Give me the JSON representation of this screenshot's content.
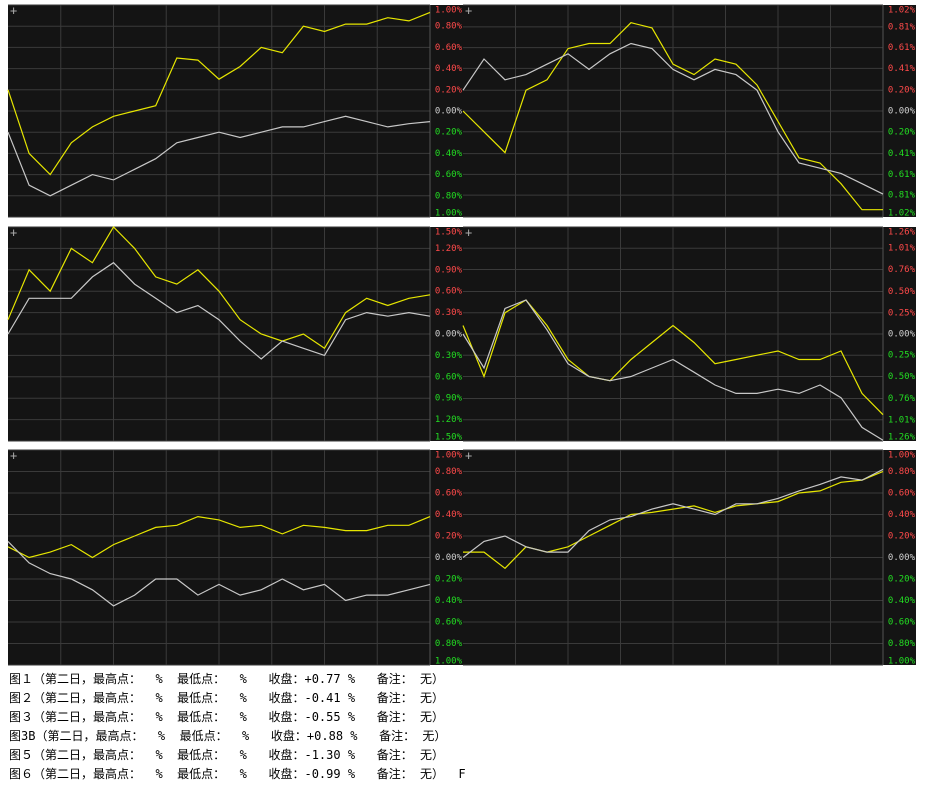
{
  "chart_data": [
    {
      "type": "line",
      "ylim": [
        -1,
        1
      ],
      "grid": true,
      "yticks": [
        {
          "value": 1,
          "label": "1.00%"
        },
        {
          "value": 0.8,
          "label": "0.80%"
        },
        {
          "value": 0.6,
          "label": "0.60%"
        },
        {
          "value": 0.4,
          "label": "0.40%"
        },
        {
          "value": 0.2,
          "label": "0.20%"
        },
        {
          "value": 0,
          "label": "0.00%"
        },
        {
          "value": -0.2,
          "label": "0.20%"
        },
        {
          "value": -0.4,
          "label": "0.40%"
        },
        {
          "value": -0.6,
          "label": "0.60%"
        },
        {
          "value": -0.8,
          "label": "0.80%"
        },
        {
          "value": -1,
          "label": "1.00%"
        }
      ],
      "series": [
        {
          "color": "#e6e600",
          "values": [
            0.2,
            -0.4,
            -0.6,
            -0.3,
            -0.15,
            -0.05,
            0.0,
            0.05,
            0.5,
            0.48,
            0.3,
            0.42,
            0.6,
            0.55,
            0.8,
            0.75,
            0.82,
            0.82,
            0.88,
            0.85,
            0.93
          ]
        },
        {
          "color": "#c8c8c8",
          "values": [
            -0.2,
            -0.7,
            -0.8,
            -0.7,
            -0.6,
            -0.65,
            -0.55,
            -0.45,
            -0.3,
            -0.25,
            -0.2,
            -0.25,
            -0.2,
            -0.15,
            -0.15,
            -0.1,
            -0.05,
            -0.1,
            -0.15,
            -0.12,
            -0.1
          ]
        }
      ]
    },
    {
      "type": "line",
      "ylim": [
        -1.02,
        1.02
      ],
      "grid": true,
      "yticks": [
        {
          "value": 1.02,
          "label": "1.02%"
        },
        {
          "value": 0.81,
          "label": "0.81%"
        },
        {
          "value": 0.61,
          "label": "0.61%"
        },
        {
          "value": 0.41,
          "label": "0.41%"
        },
        {
          "value": 0.2,
          "label": "0.20%"
        },
        {
          "value": 0,
          "label": "0.00%"
        },
        {
          "value": -0.2,
          "label": "0.20%"
        },
        {
          "value": -0.41,
          "label": "0.41%"
        },
        {
          "value": -0.61,
          "label": "0.61%"
        },
        {
          "value": -0.81,
          "label": "0.81%"
        },
        {
          "value": -1.02,
          "label": "1.02%"
        }
      ],
      "series": [
        {
          "color": "#e6e600",
          "values": [
            0.0,
            -0.2,
            -0.4,
            0.2,
            0.3,
            0.6,
            0.65,
            0.65,
            0.85,
            0.8,
            0.45,
            0.35,
            0.5,
            0.45,
            0.25,
            -0.1,
            -0.45,
            -0.5,
            -0.7,
            -0.95,
            -0.95
          ]
        },
        {
          "color": "#c8c8c8",
          "values": [
            0.2,
            0.5,
            0.3,
            0.35,
            0.45,
            0.55,
            0.4,
            0.55,
            0.65,
            0.6,
            0.4,
            0.3,
            0.4,
            0.35,
            0.2,
            -0.2,
            -0.5,
            -0.55,
            -0.6,
            -0.7,
            -0.8
          ]
        }
      ]
    },
    {
      "type": "line",
      "ylim": [
        -1.5,
        1.5
      ],
      "grid": true,
      "yticks": [
        {
          "value": 1.5,
          "label": "1.50%"
        },
        {
          "value": 1.2,
          "label": "1.20%"
        },
        {
          "value": 0.9,
          "label": "0.90%"
        },
        {
          "value": 0.6,
          "label": "0.60%"
        },
        {
          "value": 0.3,
          "label": "0.30%"
        },
        {
          "value": 0,
          "label": "0.00%"
        },
        {
          "value": -0.3,
          "label": "0.30%"
        },
        {
          "value": -0.6,
          "label": "0.60%"
        },
        {
          "value": -0.9,
          "label": "0.90%"
        },
        {
          "value": -1.2,
          "label": "1.20%"
        },
        {
          "value": -1.5,
          "label": "1.50%"
        }
      ],
      "series": [
        {
          "color": "#e6e600",
          "values": [
            0.2,
            0.9,
            0.6,
            1.2,
            1.0,
            1.5,
            1.2,
            0.8,
            0.7,
            0.9,
            0.6,
            0.2,
            0.0,
            -0.1,
            0.0,
            -0.2,
            0.3,
            0.5,
            0.4,
            0.5,
            0.55
          ]
        },
        {
          "color": "#c8c8c8",
          "values": [
            0.0,
            0.5,
            0.5,
            0.5,
            0.8,
            1.0,
            0.7,
            0.5,
            0.3,
            0.4,
            0.2,
            -0.1,
            -0.35,
            -0.1,
            -0.2,
            -0.3,
            0.2,
            0.3,
            0.25,
            0.3,
            0.25
          ]
        }
      ]
    },
    {
      "type": "line",
      "ylim": [
        -1.26,
        1.26
      ],
      "grid": true,
      "yticks": [
        {
          "value": 1.26,
          "label": "1.26%"
        },
        {
          "value": 1.01,
          "label": "1.01%"
        },
        {
          "value": 0.76,
          "label": "0.76%"
        },
        {
          "value": 0.5,
          "label": "0.50%"
        },
        {
          "value": 0.25,
          "label": "0.25%"
        },
        {
          "value": 0,
          "label": "0.00%"
        },
        {
          "value": -0.25,
          "label": "0.25%"
        },
        {
          "value": -0.5,
          "label": "0.50%"
        },
        {
          "value": -0.76,
          "label": "0.76%"
        },
        {
          "value": -1.01,
          "label": "1.01%"
        },
        {
          "value": -1.26,
          "label": "1.26%"
        }
      ],
      "series": [
        {
          "color": "#e6e600",
          "values": [
            0.1,
            -0.5,
            0.25,
            0.4,
            0.1,
            -0.3,
            -0.5,
            -0.55,
            -0.3,
            -0.1,
            0.1,
            -0.1,
            -0.35,
            -0.3,
            -0.25,
            -0.2,
            -0.3,
            -0.3,
            -0.2,
            -0.7,
            -0.95
          ]
        },
        {
          "color": "#c8c8c8",
          "values": [
            0.0,
            -0.4,
            0.3,
            0.4,
            0.05,
            -0.35,
            -0.5,
            -0.55,
            -0.5,
            -0.4,
            -0.3,
            -0.45,
            -0.6,
            -0.7,
            -0.7,
            -0.65,
            -0.7,
            -0.6,
            -0.75,
            -1.1,
            -1.25
          ]
        }
      ]
    },
    {
      "type": "line",
      "ylim": [
        -1,
        1
      ],
      "grid": true,
      "yticks": [
        {
          "value": 1,
          "label": "1.00%"
        },
        {
          "value": 0.8,
          "label": "0.80%"
        },
        {
          "value": 0.6,
          "label": "0.60%"
        },
        {
          "value": 0.4,
          "label": "0.40%"
        },
        {
          "value": 0.2,
          "label": "0.20%"
        },
        {
          "value": 0,
          "label": "0.00%"
        },
        {
          "value": -0.2,
          "label": "0.20%"
        },
        {
          "value": -0.4,
          "label": "0.40%"
        },
        {
          "value": -0.6,
          "label": "0.60%"
        },
        {
          "value": -0.8,
          "label": "0.80%"
        },
        {
          "value": -1,
          "label": "1.00%"
        }
      ],
      "series": [
        {
          "color": "#e6e600",
          "values": [
            0.1,
            0.0,
            0.05,
            0.12,
            0.0,
            0.12,
            0.2,
            0.28,
            0.3,
            0.38,
            0.35,
            0.28,
            0.3,
            0.22,
            0.3,
            0.28,
            0.25,
            0.25,
            0.3,
            0.3,
            0.38
          ]
        },
        {
          "color": "#c8c8c8",
          "values": [
            0.15,
            -0.05,
            -0.15,
            -0.2,
            -0.3,
            -0.45,
            -0.35,
            -0.2,
            -0.2,
            -0.35,
            -0.25,
            -0.35,
            -0.3,
            -0.2,
            -0.3,
            -0.25,
            -0.4,
            -0.35,
            -0.35,
            -0.3,
            -0.25
          ]
        }
      ]
    },
    {
      "type": "line",
      "ylim": [
        -1,
        1
      ],
      "grid": true,
      "yticks": [
        {
          "value": 1,
          "label": "1.00%"
        },
        {
          "value": 0.8,
          "label": "0.80%"
        },
        {
          "value": 0.6,
          "label": "0.60%"
        },
        {
          "value": 0.4,
          "label": "0.40%"
        },
        {
          "value": 0.2,
          "label": "0.20%"
        },
        {
          "value": 0,
          "label": "0.00%"
        },
        {
          "value": -0.2,
          "label": "0.20%"
        },
        {
          "value": -0.4,
          "label": "0.40%"
        },
        {
          "value": -0.6,
          "label": "0.60%"
        },
        {
          "value": -0.8,
          "label": "0.80%"
        },
        {
          "value": -1,
          "label": "1.00%"
        }
      ],
      "series": [
        {
          "color": "#e6e600",
          "values": [
            0.05,
            0.05,
            -0.1,
            0.1,
            0.05,
            0.1,
            0.2,
            0.3,
            0.4,
            0.42,
            0.45,
            0.48,
            0.42,
            0.48,
            0.5,
            0.52,
            0.6,
            0.62,
            0.7,
            0.72,
            0.8
          ]
        },
        {
          "color": "#c8c8c8",
          "values": [
            0.0,
            0.15,
            0.2,
            0.1,
            0.05,
            0.05,
            0.25,
            0.35,
            0.38,
            0.45,
            0.5,
            0.45,
            0.4,
            0.5,
            0.5,
            0.55,
            0.62,
            0.68,
            0.75,
            0.72,
            0.82
          ]
        }
      ]
    }
  ],
  "captions": [
    "图１（第二日，最高点：  %  最低点：  %   收盘：+0.77 %   备注： 无）",
    "图２（第二日，最高点：  %  最低点：  %   收盘：-0.41 %   备注： 无）",
    "图３（第二日，最高点：  %  最低点：  %   收盘：-0.55 %   备注： 无）",
    "图3B（第二日，最高点：  %  最低点：  %   收盘：+0.88 %   备注： 无）",
    "图５（第二日，最高点：  %  最低点：  %   收盘：-1.30 %   备注： 无）",
    "图６（第二日，最高点：  %  最低点：  %   收盘：-0.99 %   备注： 无）  F"
  ]
}
